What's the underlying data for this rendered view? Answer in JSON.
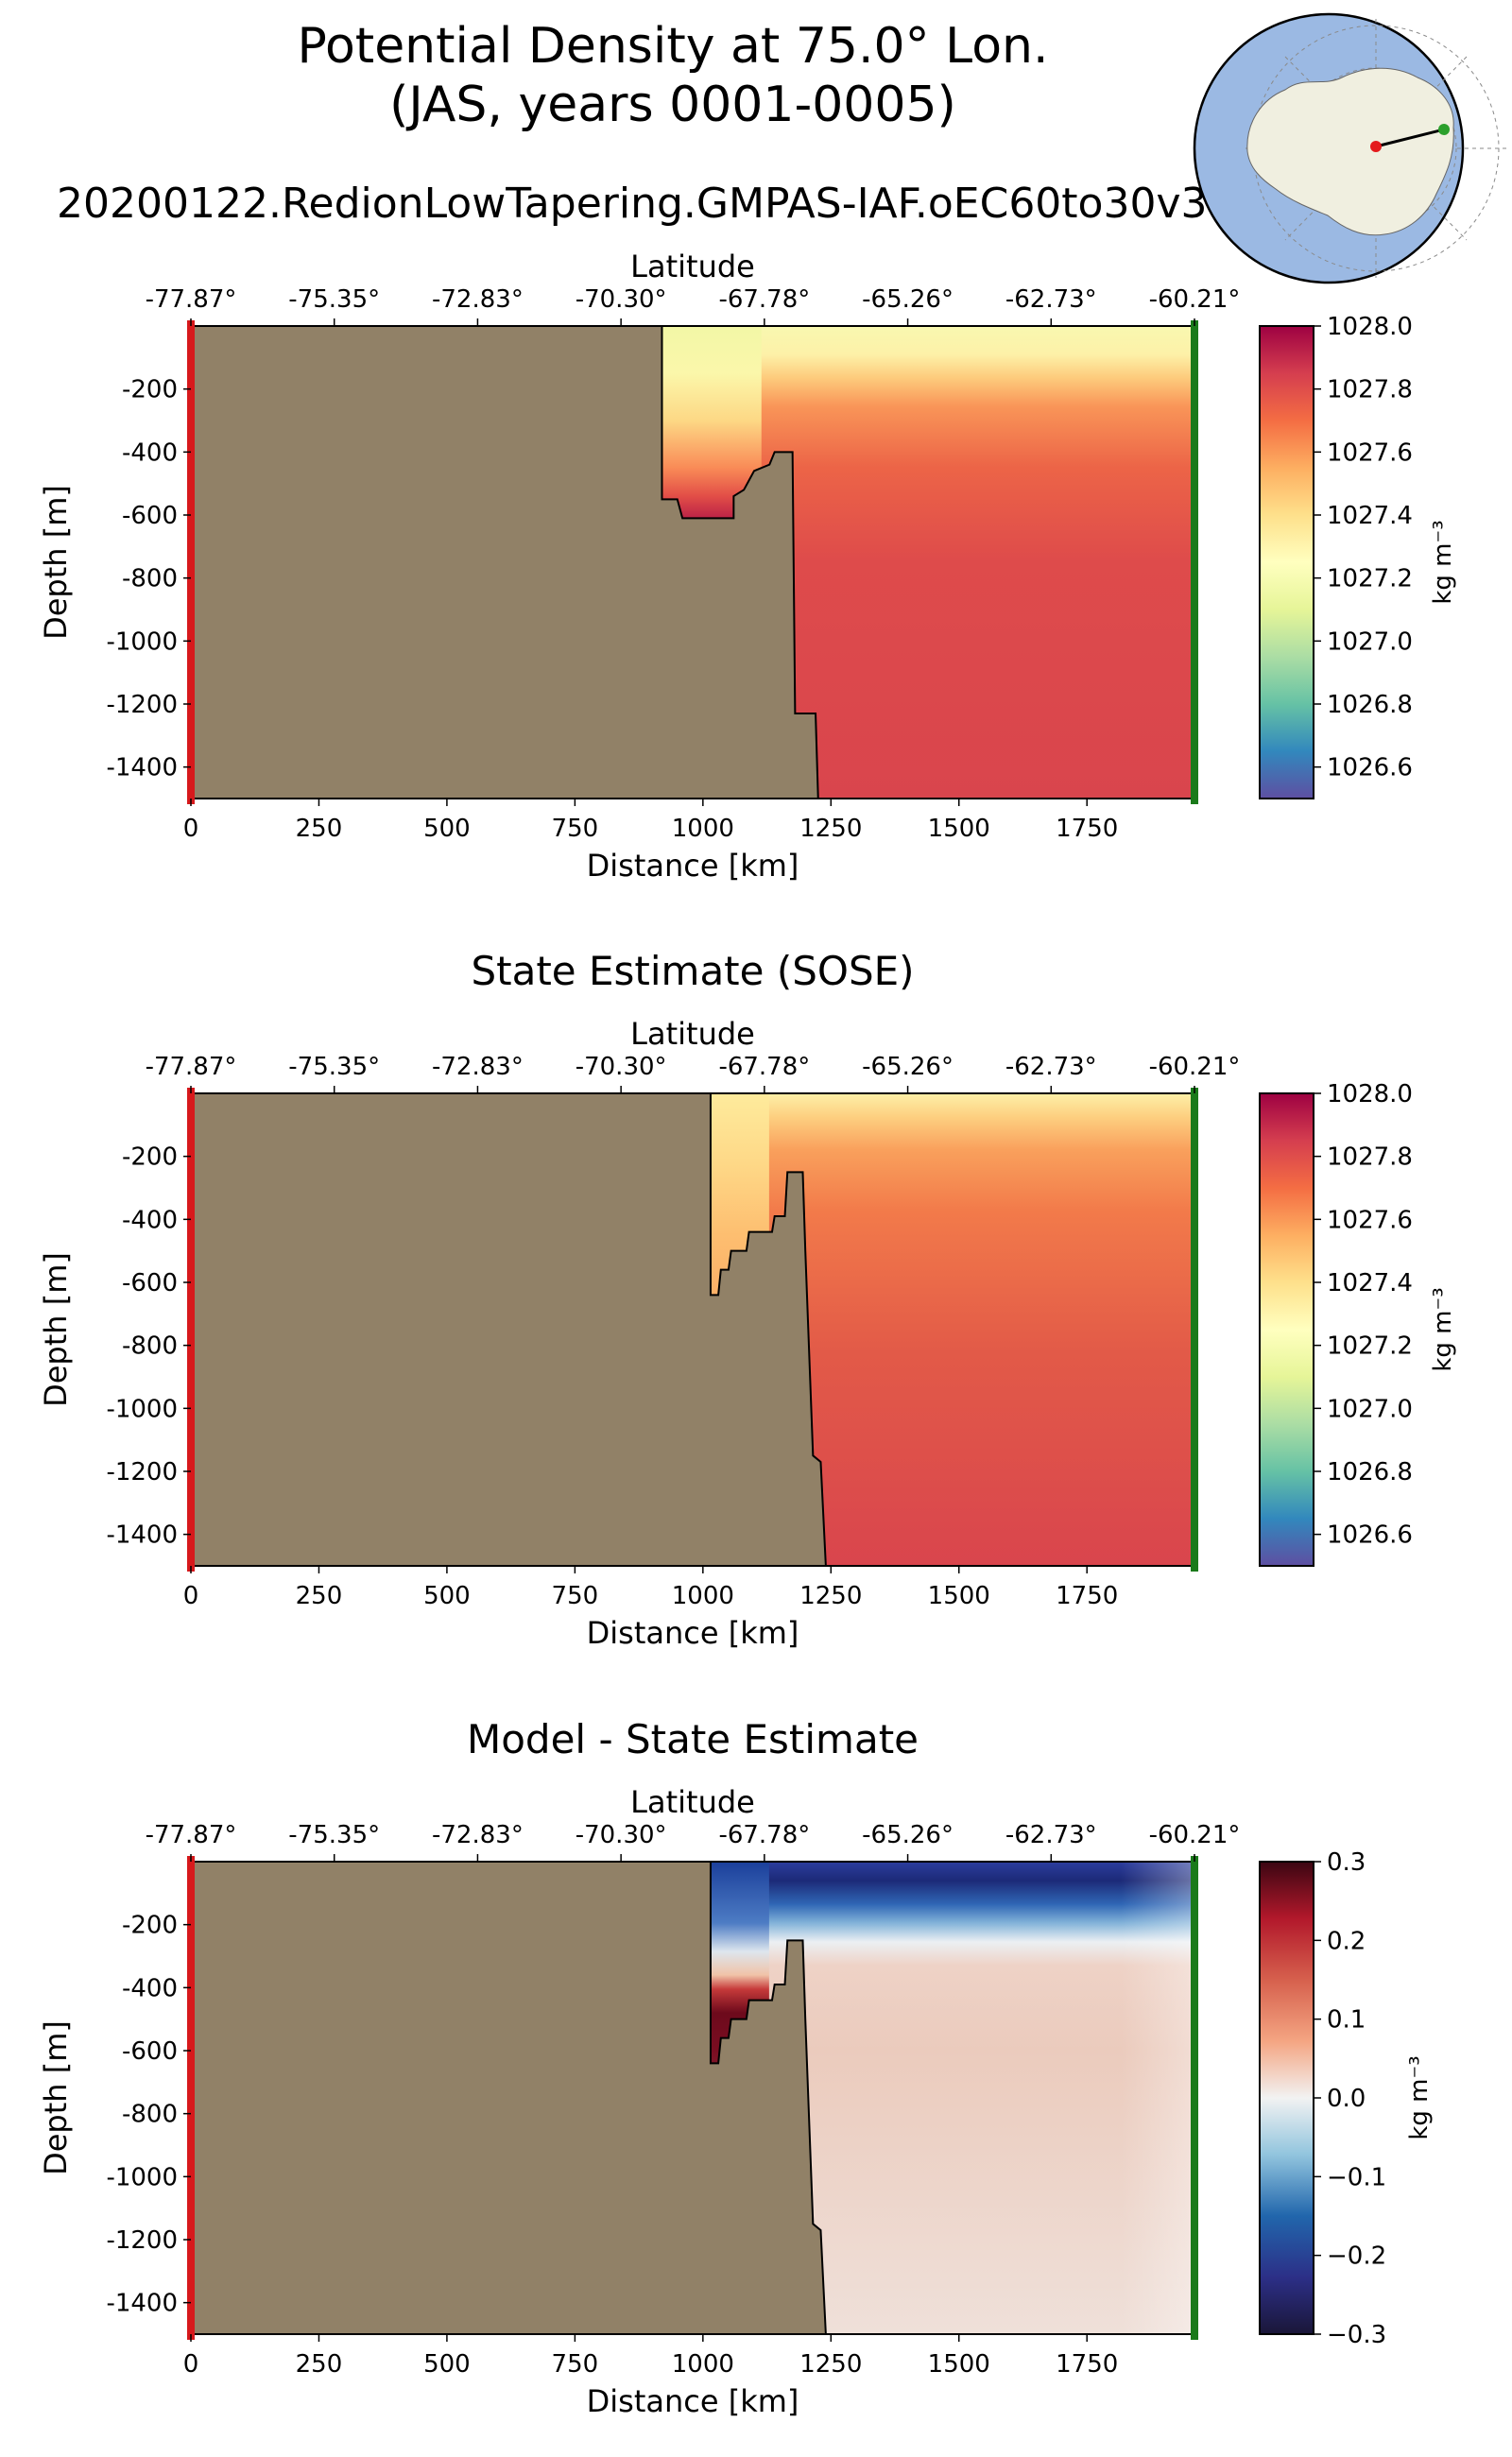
{
  "figure": {
    "title_line1": "Potential Density at 75.0° Lon.",
    "title_line2": "(JAS, years 0001-0005)",
    "run_name": "20200122.RedionLowTapering.GMPAS-IAF.oEC60to30v3",
    "land_color": "#918167",
    "left_edge_color": "#d7191c",
    "right_edge_color": "#1a7a1a",
    "inset_map": {
      "ocean_color": "#9bb9e3",
      "land_color": "#f0efe0",
      "start_marker_color": "#e41a1c",
      "end_marker_color": "#2ca02c"
    }
  },
  "chart_data": [
    {
      "type": "heatmap",
      "title": "",
      "xlabel": "Distance [km]",
      "ylabel": "Depth [m]",
      "top_axis_label": "Latitude",
      "xlim": [
        0,
        1960
      ],
      "ylim": [
        -1500,
        0
      ],
      "xticks": [
        0,
        250,
        500,
        750,
        1000,
        1250,
        1500,
        1750
      ],
      "yticks": [
        -200,
        -400,
        -600,
        -800,
        -1000,
        -1200,
        -1400
      ],
      "lat_ticks": [
        "-77.87°",
        "-75.35°",
        "-72.83°",
        "-70.30°",
        "-67.78°",
        "-65.26°",
        "-62.73°",
        "-60.21°"
      ],
      "colormap": "Spectral_r",
      "colorbar": {
        "label": "kg m⁻³",
        "vmin": 1026.5,
        "vmax": 1028.0,
        "ticks": [
          "1028.0",
          "1027.8",
          "1027.6",
          "1027.4",
          "1027.2",
          "1027.0",
          "1026.8",
          "1026.6"
        ],
        "tick_values": [
          1028.0,
          1027.8,
          1027.6,
          1027.4,
          1027.2,
          1027.0,
          1026.8,
          1026.6
        ]
      },
      "bathymetry_km_m": [
        [
          0,
          0
        ],
        [
          920,
          0
        ],
        [
          920,
          -550
        ],
        [
          950,
          -550
        ],
        [
          960,
          -610
        ],
        [
          1060,
          -610
        ],
        [
          1060,
          -540
        ],
        [
          1080,
          -520
        ],
        [
          1100,
          -460
        ],
        [
          1130,
          -440
        ],
        [
          1140,
          -400
        ],
        [
          1175,
          -400
        ],
        [
          1180,
          -1230
        ],
        [
          1220,
          -1230
        ],
        [
          1225,
          -1500
        ]
      ],
      "field_profiles": {
        "near_coast_1000km": [
          [
            0,
            1027.05
          ],
          [
            -100,
            1027.15
          ],
          [
            -200,
            1027.3
          ],
          [
            -300,
            1027.55
          ],
          [
            -400,
            1027.85
          ],
          [
            -500,
            1027.95
          ],
          [
            -600,
            1028.0
          ]
        ],
        "offshore_1500km": [
          [
            0,
            1027.1
          ],
          [
            -100,
            1027.25
          ],
          [
            -200,
            1027.55
          ],
          [
            -300,
            1027.65
          ],
          [
            -400,
            1027.7
          ],
          [
            -600,
            1027.75
          ],
          [
            -1000,
            1027.78
          ],
          [
            -1500,
            1027.8
          ]
        ]
      }
    },
    {
      "type": "heatmap",
      "title": "State Estimate (SOSE)",
      "xlabel": "Distance [km]",
      "ylabel": "Depth [m]",
      "top_axis_label": "Latitude",
      "xlim": [
        0,
        1960
      ],
      "ylim": [
        -1500,
        0
      ],
      "xticks": [
        0,
        250,
        500,
        750,
        1000,
        1250,
        1500,
        1750
      ],
      "yticks": [
        -200,
        -400,
        -600,
        -800,
        -1000,
        -1200,
        -1400
      ],
      "lat_ticks": [
        "-77.87°",
        "-75.35°",
        "-72.83°",
        "-70.30°",
        "-67.78°",
        "-65.26°",
        "-62.73°",
        "-60.21°"
      ],
      "colormap": "Spectral_r",
      "colorbar": {
        "label": "kg m⁻³",
        "vmin": 1026.5,
        "vmax": 1028.0,
        "ticks": [
          "1028.0",
          "1027.8",
          "1027.6",
          "1027.4",
          "1027.2",
          "1027.0",
          "1026.8",
          "1026.6"
        ],
        "tick_values": [
          1028.0,
          1027.8,
          1027.6,
          1027.4,
          1027.2,
          1027.0,
          1026.8,
          1026.6
        ]
      },
      "bathymetry_km_m": [
        [
          0,
          0
        ],
        [
          1015,
          0
        ],
        [
          1015,
          -640
        ],
        [
          1030,
          -640
        ],
        [
          1035,
          -560
        ],
        [
          1050,
          -560
        ],
        [
          1055,
          -500
        ],
        [
          1085,
          -500
        ],
        [
          1090,
          -440
        ],
        [
          1135,
          -440
        ],
        [
          1140,
          -390
        ],
        [
          1160,
          -390
        ],
        [
          1165,
          -250
        ],
        [
          1195,
          -250
        ],
        [
          1200,
          -500
        ],
        [
          1215,
          -1150
        ],
        [
          1230,
          -1170
        ],
        [
          1240,
          -1500
        ]
      ],
      "field_profiles": {
        "near_coast_1100km": [
          [
            0,
            1027.3
          ],
          [
            -100,
            1027.4
          ],
          [
            -200,
            1027.45
          ],
          [
            -300,
            1027.5
          ],
          [
            -400,
            1027.55
          ],
          [
            -600,
            1027.6
          ]
        ],
        "offshore_1500km": [
          [
            0,
            1027.35
          ],
          [
            -100,
            1027.5
          ],
          [
            -200,
            1027.6
          ],
          [
            -400,
            1027.62
          ],
          [
            -600,
            1027.65
          ],
          [
            -1000,
            1027.72
          ],
          [
            -1500,
            1027.78
          ]
        ]
      }
    },
    {
      "type": "heatmap",
      "title": "Model - State Estimate",
      "xlabel": "Distance [km]",
      "ylabel": "Depth [m]",
      "top_axis_label": "Latitude",
      "xlim": [
        0,
        1960
      ],
      "ylim": [
        -1500,
        0
      ],
      "xticks": [
        0,
        250,
        500,
        750,
        1000,
        1250,
        1500,
        1750
      ],
      "yticks": [
        -200,
        -400,
        -600,
        -800,
        -1000,
        -1200,
        -1400
      ],
      "lat_ticks": [
        "-77.87°",
        "-75.35°",
        "-72.83°",
        "-70.30°",
        "-67.78°",
        "-65.26°",
        "-62.73°",
        "-60.21°"
      ],
      "colormap": "RdBu_r",
      "colorbar": {
        "label": "kg m⁻³",
        "vmin": -0.3,
        "vmax": 0.3,
        "ticks": [
          "0.3",
          "0.2",
          "0.1",
          "0.0",
          "−0.1",
          "−0.2",
          "−0.3"
        ],
        "tick_values": [
          0.3,
          0.2,
          0.1,
          0.0,
          -0.1,
          -0.2,
          -0.3
        ]
      },
      "bathymetry_km_m": [
        [
          0,
          0
        ],
        [
          1015,
          0
        ],
        [
          1015,
          -640
        ],
        [
          1030,
          -640
        ],
        [
          1035,
          -560
        ],
        [
          1050,
          -560
        ],
        [
          1055,
          -500
        ],
        [
          1085,
          -500
        ],
        [
          1090,
          -440
        ],
        [
          1135,
          -440
        ],
        [
          1140,
          -390
        ],
        [
          1160,
          -390
        ],
        [
          1165,
          -250
        ],
        [
          1195,
          -250
        ],
        [
          1200,
          -500
        ],
        [
          1215,
          -1150
        ],
        [
          1230,
          -1170
        ],
        [
          1240,
          -1500
        ]
      ],
      "field_profiles": {
        "near_coast_1100km": [
          [
            0,
            -0.2
          ],
          [
            -100,
            -0.2
          ],
          [
            -200,
            -0.05
          ],
          [
            -300,
            0.2
          ],
          [
            -400,
            0.3
          ],
          [
            -500,
            0.3
          ],
          [
            -600,
            0.25
          ]
        ],
        "offshore_1500km": [
          [
            0,
            -0.28
          ],
          [
            -100,
            -0.25
          ],
          [
            -200,
            -0.1
          ],
          [
            -300,
            0.05
          ],
          [
            -400,
            0.07
          ],
          [
            -600,
            0.06
          ],
          [
            -1000,
            0.05
          ],
          [
            -1500,
            0.04
          ]
        ]
      }
    }
  ]
}
